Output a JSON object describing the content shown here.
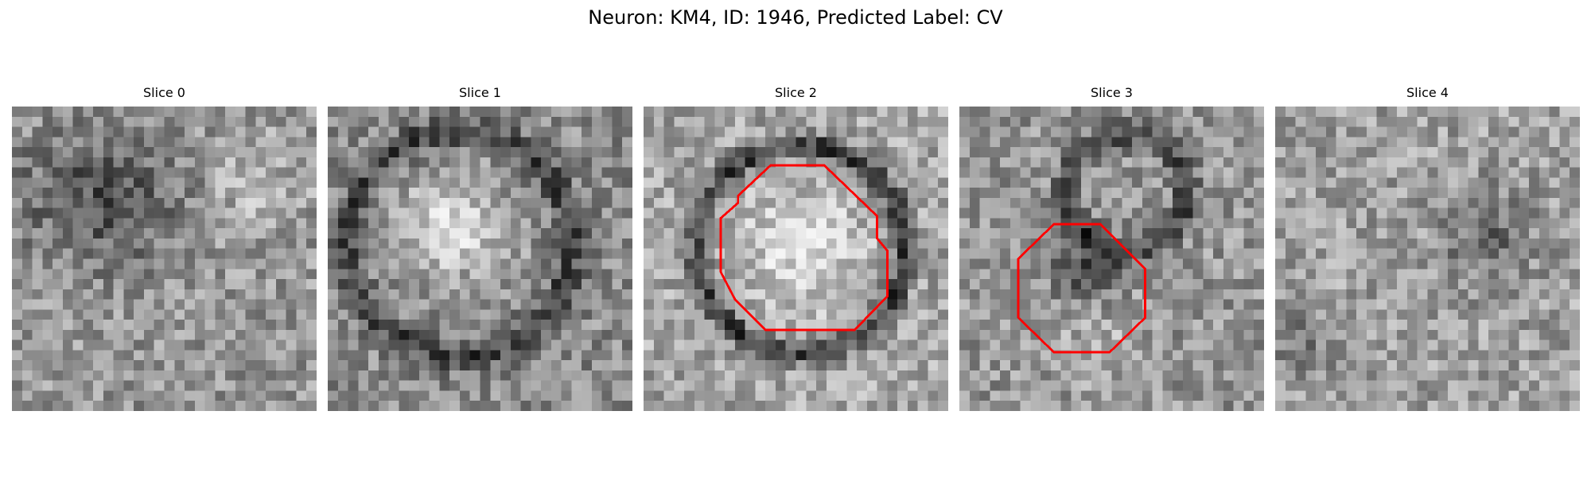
{
  "figure": {
    "title": "Neuron: KM4, ID: 1946, Predicted Label: CV",
    "overlay_color": "#ff0000"
  },
  "slices": [
    {
      "label": "Slice 0",
      "has_contour": false
    },
    {
      "label": "Slice 1",
      "has_contour": false
    },
    {
      "label": "Slice 2",
      "has_contour": true
    },
    {
      "label": "Slice 3",
      "has_contour": true
    },
    {
      "label": "Slice 4",
      "has_contour": false
    }
  ]
}
